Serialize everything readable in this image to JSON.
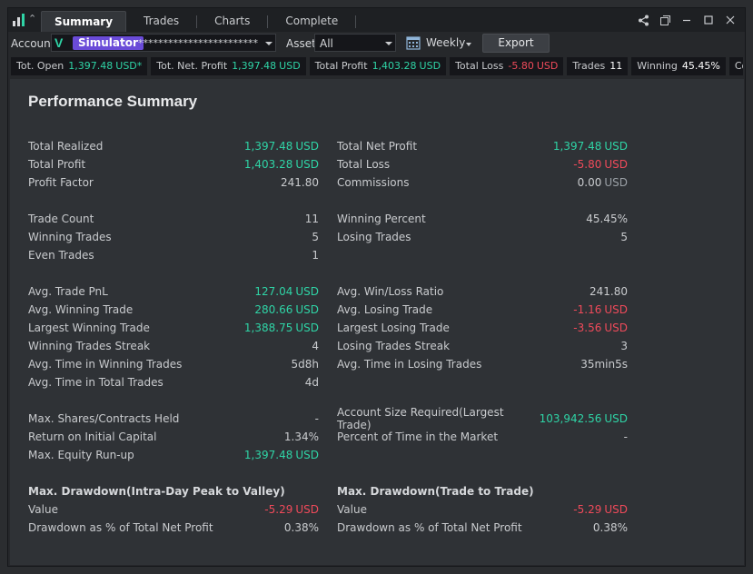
{
  "tabs": [
    "Summary",
    "Trades",
    "Charts",
    "Complete"
  ],
  "toolbar": {
    "account_label": "Account",
    "account_badge": "Simulator",
    "account_masked": "************************",
    "asset_label": "Asset",
    "asset_value": "All",
    "period": "Weekly",
    "export": "Export"
  },
  "stats": [
    {
      "label": "Tot. Open",
      "value": "1,397.48",
      "unit": "USD*",
      "color": "green"
    },
    {
      "label": "Tot. Net. Profit",
      "value": "1,397.48",
      "unit": "USD",
      "color": "green"
    },
    {
      "label": "Total Profit",
      "value": "1,403.28",
      "unit": "USD",
      "color": "green"
    },
    {
      "label": "Total Loss",
      "value": "-5.80",
      "unit": "USD",
      "color": "red"
    },
    {
      "label": "Trades",
      "value": "11",
      "unit": "",
      "color": "plain"
    },
    {
      "label": "Winning",
      "value": "45.45%",
      "unit": "",
      "color": "plain"
    },
    {
      "label": "Comm",
      "value": "",
      "unit": "",
      "color": "plain"
    }
  ],
  "summary": {
    "title": "Performance Summary",
    "left": [
      {
        "label": "Total Realized",
        "value": "1,397.48",
        "unit": "USD",
        "color": "green"
      },
      {
        "label": "Total Profit",
        "value": "1,403.28",
        "unit": "USD",
        "color": "green"
      },
      {
        "label": "Profit Factor",
        "value": "241.80",
        "unit": "",
        "color": "plain"
      },
      null,
      {
        "label": "Trade Count",
        "value": "11",
        "unit": "",
        "color": "plain"
      },
      {
        "label": "Winning Trades",
        "value": "5",
        "unit": "",
        "color": "plain"
      },
      {
        "label": "Even Trades",
        "value": "1",
        "unit": "",
        "color": "plain"
      },
      null,
      {
        "label": "Avg. Trade PnL",
        "value": "127.04",
        "unit": "USD",
        "color": "green"
      },
      {
        "label": "Avg. Winning Trade",
        "value": "280.66",
        "unit": "USD",
        "color": "green"
      },
      {
        "label": "Largest Winning Trade",
        "value": "1,388.75",
        "unit": "USD",
        "color": "green"
      },
      {
        "label": "Winning Trades Streak",
        "value": "4",
        "unit": "",
        "color": "plain"
      },
      {
        "label": "Avg. Time in Winning Trades",
        "value": "5d8h",
        "unit": "",
        "color": "plain"
      },
      {
        "label": "Avg. Time in Total Trades",
        "value": "4d",
        "unit": "",
        "color": "plain"
      },
      null,
      {
        "label": "Max. Shares/Contracts Held",
        "value": "-",
        "unit": "",
        "color": "plain"
      },
      {
        "label": "Return on Initial Capital",
        "value": "1.34%",
        "unit": "",
        "color": "plain"
      },
      {
        "label": "Max. Equity Run-up",
        "value": "1,397.48",
        "unit": "USD",
        "color": "green"
      },
      null,
      {
        "label": "Max. Drawdown(Intra-Day Peak to Valley)",
        "value": "",
        "unit": "",
        "color": "plain",
        "heading": true
      },
      {
        "label": "Value",
        "value": "-5.29",
        "unit": "USD",
        "color": "red"
      },
      {
        "label": "Drawdown as % of Total Net Profit",
        "value": "0.38%",
        "unit": "",
        "color": "plain"
      }
    ],
    "right": [
      {
        "label": "Total Net Profit",
        "value": "1,397.48",
        "unit": "USD",
        "color": "green"
      },
      {
        "label": "Total Loss",
        "value": "-5.80",
        "unit": "USD",
        "color": "red"
      },
      {
        "label": "Commissions",
        "value": "0.00",
        "unit": "USD",
        "color": "plain"
      },
      null,
      {
        "label": "Winning Percent",
        "value": "45.45%",
        "unit": "",
        "color": "plain"
      },
      {
        "label": "Losing Trades",
        "value": "5",
        "unit": "",
        "color": "plain"
      },
      {
        "label": "",
        "value": "",
        "unit": "",
        "color": "plain"
      },
      null,
      {
        "label": "Avg. Win/Loss Ratio",
        "value": "241.80",
        "unit": "",
        "color": "plain"
      },
      {
        "label": "Avg. Losing Trade",
        "value": "-1.16",
        "unit": "USD",
        "color": "red"
      },
      {
        "label": "Largest Losing Trade",
        "value": "-3.56",
        "unit": "USD",
        "color": "red"
      },
      {
        "label": "Losing Trades Streak",
        "value": "3",
        "unit": "",
        "color": "plain"
      },
      {
        "label": "Avg. Time in Losing Trades",
        "value": "35min5s",
        "unit": "",
        "color": "plain"
      },
      {
        "label": "",
        "value": "",
        "unit": "",
        "color": "plain"
      },
      null,
      {
        "label": "Account Size Required(Largest Trade)",
        "value": "103,942.56",
        "unit": "USD",
        "color": "green"
      },
      {
        "label": "Percent of Time in the Market",
        "value": "-",
        "unit": "",
        "color": "plain"
      },
      {
        "label": "",
        "value": "",
        "unit": "",
        "color": "plain"
      },
      null,
      {
        "label": "Max. Drawdown(Trade to Trade)",
        "value": "",
        "unit": "",
        "color": "plain",
        "heading": true
      },
      {
        "label": "Value",
        "value": "-5.29",
        "unit": "USD",
        "color": "red"
      },
      {
        "label": "Drawdown as % of Total Net Profit",
        "value": "0.38%",
        "unit": "",
        "color": "plain"
      }
    ]
  },
  "colors": {
    "green": "#2fd4a6",
    "red": "#ef4a5a",
    "accent": "#6a4bd8"
  }
}
